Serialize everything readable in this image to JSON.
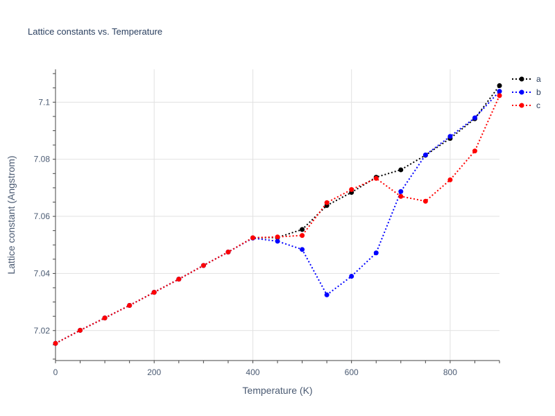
{
  "chart_data": {
    "type": "line",
    "title": "Lattice constants vs. Temperature",
    "xlabel": "Temperature (K)",
    "ylabel": "Lattice constant (Angstrom)",
    "xlim": [
      0,
      900
    ],
    "ylim": [
      7.0095,
      7.1115
    ],
    "xticks": [
      0,
      200,
      400,
      600,
      800
    ],
    "yticks": [
      7.02,
      7.04,
      7.06,
      7.08,
      7.1
    ],
    "grid": true,
    "legend": "top-right",
    "x": [
      0,
      50,
      100,
      150,
      200,
      250,
      300,
      350,
      400,
      450,
      500,
      550,
      600,
      650,
      700,
      750,
      800,
      850,
      900
    ],
    "series": [
      {
        "name": "a",
        "color": "#000000",
        "values": [
          7.0155,
          7.0201,
          7.0244,
          7.0288,
          7.0334,
          7.038,
          7.0428,
          7.0475,
          7.0525,
          7.0526,
          7.0554,
          7.0638,
          7.0684,
          7.0737,
          7.0763,
          7.0814,
          7.0873,
          7.0942,
          7.1058
        ]
      },
      {
        "name": "b",
        "color": "#0000ff",
        "values": [
          7.0155,
          7.0201,
          7.0244,
          7.0288,
          7.0334,
          7.038,
          7.0428,
          7.0475,
          7.0524,
          7.0513,
          7.0484,
          7.0325,
          7.039,
          7.0472,
          7.0687,
          7.0815,
          7.088,
          7.0945,
          7.1038
        ]
      },
      {
        "name": "c",
        "color": "#ff0000",
        "values": [
          7.0155,
          7.0201,
          7.0244,
          7.0288,
          7.0334,
          7.038,
          7.0428,
          7.0475,
          7.0525,
          7.0528,
          7.0533,
          7.0648,
          7.0694,
          7.0733,
          7.067,
          7.0653,
          7.0728,
          7.0829,
          7.1023
        ]
      }
    ]
  }
}
